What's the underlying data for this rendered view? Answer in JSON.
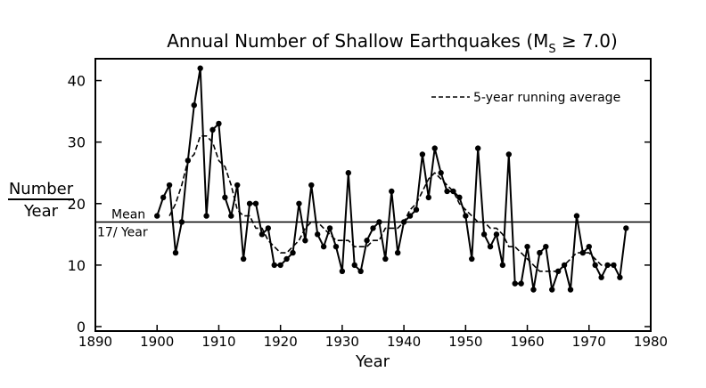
{
  "chart_data": {
    "type": "line",
    "title": "Annual Number of Shallow Earthquakes (M",
    "title_sub": "S",
    "title_rest": " ≥ 7.0)",
    "xlabel": "Year",
    "ylabel_top": "Number",
    "ylabel_bottom": "Year",
    "xlim": [
      1890,
      1980
    ],
    "ylim": [
      0,
      45
    ],
    "x_ticks": [
      1890,
      1900,
      1910,
      1920,
      1930,
      1940,
      1950,
      1960,
      1970,
      1980
    ],
    "y_ticks": [
      0,
      10,
      20,
      30,
      40
    ],
    "grid": false,
    "legend": {
      "position": "top-right",
      "dash_label": "5-year running average"
    },
    "mean": {
      "value": 17,
      "label_line1": "Mean",
      "label_line2": "17/ Year"
    },
    "series": [
      {
        "name": "",
        "style": "solid-with-markers",
        "x": [
          1900,
          1901,
          1902,
          1903,
          1904,
          1905,
          1906,
          1907,
          1908,
          1909,
          1910,
          1911,
          1912,
          1913,
          1914,
          1915,
          1916,
          1917,
          1918,
          1919,
          1920,
          1921,
          1922,
          1923,
          1924,
          1925,
          1926,
          1927,
          1928,
          1929,
          1930,
          1931,
          1932,
          1933,
          1934,
          1935,
          1936,
          1937,
          1938,
          1939,
          1940,
          1941,
          1942,
          1943,
          1944,
          1945,
          1946,
          1947,
          1948,
          1949,
          1950,
          1951,
          1952,
          1953,
          1954,
          1955,
          1956,
          1957,
          1958,
          1959,
          1960,
          1961,
          1962,
          1963,
          1964,
          1965,
          1966,
          1967,
          1968,
          1969,
          1970,
          1971,
          1972,
          1973,
          1974,
          1975,
          1976
        ],
        "values": [
          18,
          21,
          23,
          12,
          17,
          27,
          36,
          42,
          18,
          32,
          33,
          21,
          18,
          23,
          11,
          20,
          20,
          15,
          16,
          10,
          10,
          11,
          12,
          20,
          14,
          23,
          15,
          13,
          16,
          13,
          9,
          25,
          10,
          9,
          14,
          16,
          17,
          11,
          22,
          12,
          17,
          18,
          19,
          28,
          21,
          29,
          25,
          22,
          22,
          21,
          18,
          11,
          29,
          15,
          13,
          15,
          10,
          28,
          7,
          7,
          13,
          6,
          12,
          13,
          6,
          9,
          10,
          6,
          18,
          12,
          13,
          10,
          8,
          10,
          10,
          8,
          16
        ]
      },
      {
        "name": "5-year running average",
        "style": "dashed",
        "x": [
          1902,
          1903,
          1904,
          1905,
          1906,
          1907,
          1908,
          1909,
          1910,
          1911,
          1912,
          1913,
          1914,
          1915,
          1916,
          1917,
          1918,
          1919,
          1920,
          1921,
          1922,
          1923,
          1924,
          1925,
          1926,
          1927,
          1928,
          1929,
          1930,
          1931,
          1932,
          1933,
          1934,
          1935,
          1936,
          1937,
          1938,
          1939,
          1940,
          1941,
          1942,
          1943,
          1944,
          1945,
          1946,
          1947,
          1948,
          1949,
          1950,
          1951,
          1952,
          1953,
          1954,
          1955,
          1956,
          1957,
          1958,
          1959,
          1960,
          1961,
          1962,
          1963,
          1964,
          1965,
          1966,
          1967,
          1968,
          1969,
          1970,
          1971,
          1972,
          1973,
          1974
        ],
        "values": [
          18,
          20,
          23,
          27,
          28,
          31,
          31,
          30,
          27,
          26,
          23,
          19,
          18,
          18,
          16,
          16,
          14,
          13,
          12,
          12,
          13,
          14,
          16,
          17,
          17,
          16,
          15,
          14,
          14,
          14,
          13,
          13,
          13,
          14,
          14,
          16,
          16,
          16,
          17,
          19,
          20,
          22,
          24,
          25,
          24,
          23,
          22,
          20,
          19,
          18,
          17,
          17,
          16,
          16,
          15,
          13,
          13,
          12,
          11,
          10,
          9,
          9,
          9,
          9,
          10,
          11,
          12,
          12,
          12,
          11,
          10,
          10,
          10
        ]
      }
    ]
  }
}
